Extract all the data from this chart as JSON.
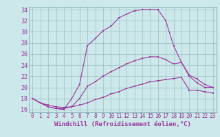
{
  "xlabel": "Windchill (Refroidissement éolien,°C)",
  "bg_color": "#cce8ea",
  "line_color": "#993399",
  "xlim": [
    -0.5,
    23.5
  ],
  "ylim": [
    15.5,
    34.5
  ],
  "xticks": [
    0,
    1,
    2,
    3,
    4,
    5,
    6,
    7,
    8,
    9,
    10,
    11,
    12,
    13,
    14,
    15,
    16,
    17,
    18,
    19,
    20,
    21,
    22,
    23
  ],
  "yticks": [
    16,
    18,
    20,
    22,
    24,
    26,
    28,
    30,
    32,
    34
  ],
  "series1_x": [
    0,
    1,
    2,
    3,
    4,
    5,
    6,
    7,
    8,
    9,
    10,
    11,
    12,
    13,
    14,
    15,
    16,
    17,
    18,
    19,
    20,
    21,
    22,
    23
  ],
  "series1_y": [
    18.0,
    17.2,
    16.5,
    16.2,
    16.0,
    18.0,
    20.5,
    27.5,
    28.8,
    30.2,
    31.0,
    32.5,
    33.2,
    33.8,
    34.0,
    34.0,
    34.0,
    32.0,
    27.5,
    24.5,
    22.0,
    20.8,
    20.0,
    20.0
  ],
  "series2_x": [
    0,
    1,
    2,
    3,
    4,
    5,
    6,
    7,
    8,
    9,
    10,
    11,
    12,
    13,
    14,
    15,
    16,
    17,
    18,
    19,
    20,
    21,
    22,
    23
  ],
  "series2_y": [
    18.0,
    17.2,
    16.5,
    16.2,
    16.2,
    16.5,
    18.0,
    20.2,
    21.0,
    22.0,
    22.8,
    23.5,
    24.2,
    24.8,
    25.2,
    25.5,
    25.5,
    25.0,
    24.2,
    24.5,
    22.2,
    21.5,
    20.5,
    20.0
  ],
  "series3_x": [
    0,
    1,
    2,
    3,
    4,
    5,
    6,
    7,
    8,
    9,
    10,
    11,
    12,
    13,
    14,
    15,
    16,
    17,
    18,
    19,
    20,
    21,
    22,
    23
  ],
  "series3_y": [
    18.0,
    17.2,
    16.8,
    16.5,
    16.4,
    16.5,
    16.8,
    17.2,
    17.8,
    18.2,
    18.8,
    19.2,
    19.8,
    20.2,
    20.6,
    21.0,
    21.2,
    21.4,
    21.6,
    21.8,
    19.5,
    19.5,
    19.2,
    19.0
  ],
  "font_size_xlabel": 6.5,
  "font_size_yticks": 6,
  "font_size_xticks": 5.5
}
